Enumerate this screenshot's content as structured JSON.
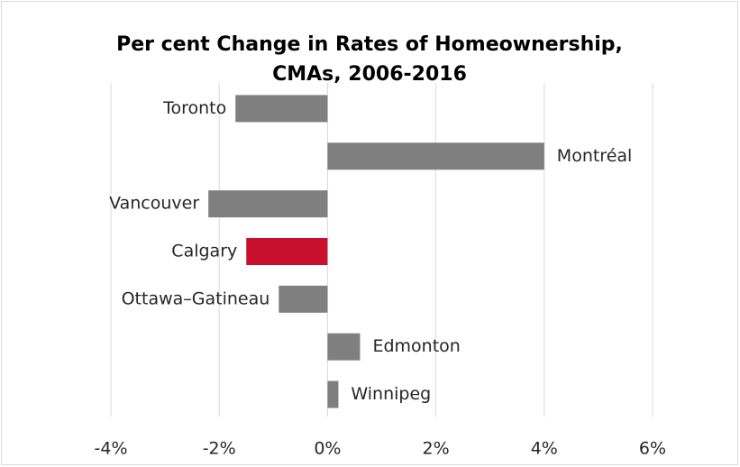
{
  "chart_data": {
    "type": "hbar",
    "title": [
      "Per cent Change in Rates of Homeownership,",
      "CMAs, 2006-2016"
    ],
    "categories": [
      "Toronto",
      "Montréal",
      "Vancouver",
      "Calgary",
      "Ottawa–Gatineau",
      "Edmonton",
      "Winnipeg"
    ],
    "values": [
      -1.7,
      4.0,
      -2.2,
      -1.5,
      -0.9,
      0.6,
      0.2
    ],
    "colors": [
      "#7f7f7f",
      "#7f7f7f",
      "#7f7f7f",
      "#c8102e",
      "#7f7f7f",
      "#7f7f7f",
      "#7f7f7f"
    ],
    "xlim": [
      -4,
      6
    ],
    "xticks": [
      {
        "value": -4,
        "label": "-4%"
      },
      {
        "value": -2,
        "label": "-2%"
      },
      {
        "value": 0,
        "label": "0%"
      },
      {
        "value": 2,
        "label": "2%"
      },
      {
        "value": 4,
        "label": "4%"
      },
      {
        "value": 6,
        "label": "6%"
      }
    ],
    "grid": true
  }
}
